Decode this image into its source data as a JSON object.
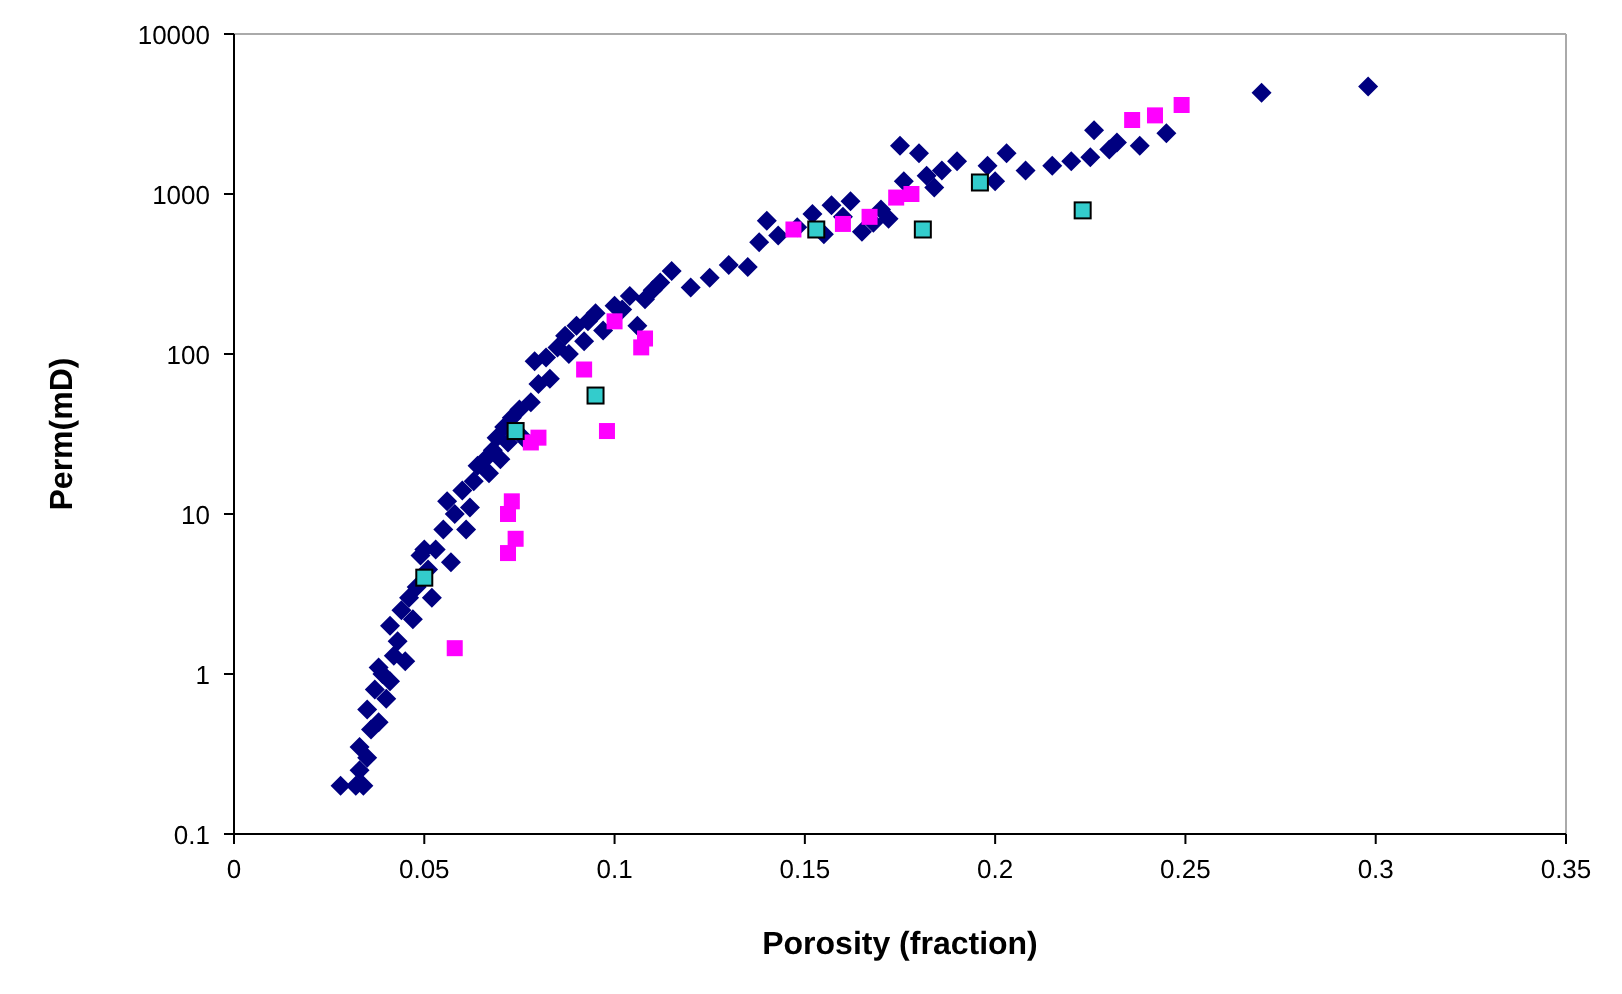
{
  "chart_data": {
    "type": "scatter",
    "xlabel": "Porosity (fraction)",
    "ylabel": "Perm(mD)",
    "log": "y",
    "grid": false,
    "xlim": [
      0,
      0.35
    ],
    "xticks": [
      0,
      0.05,
      0.1,
      0.15,
      0.2,
      0.25,
      0.3,
      0.35
    ],
    "ylim": [
      0.1,
      10000
    ],
    "yticks": [
      0.1,
      1,
      10,
      100,
      1000,
      10000
    ],
    "series": [
      {
        "color": "#000080",
        "marker": "diamond",
        "x": [
          0.028,
          0.032,
          0.033,
          0.034,
          0.033,
          0.035,
          0.036,
          0.035,
          0.037,
          0.038,
          0.039,
          0.038,
          0.04,
          0.041,
          0.042,
          0.043,
          0.041,
          0.044,
          0.045,
          0.046,
          0.047,
          0.048,
          0.049,
          0.05,
          0.051,
          0.052,
          0.053,
          0.055,
          0.056,
          0.057,
          0.058,
          0.06,
          0.061,
          0.062,
          0.063,
          0.064,
          0.066,
          0.067,
          0.068,
          0.069,
          0.07,
          0.071,
          0.072,
          0.073,
          0.075,
          0.076,
          0.078,
          0.079,
          0.08,
          0.082,
          0.083,
          0.085,
          0.087,
          0.088,
          0.09,
          0.092,
          0.093,
          0.095,
          0.097,
          0.1,
          0.102,
          0.104,
          0.106,
          0.108,
          0.11,
          0.112,
          0.115,
          0.12,
          0.125,
          0.13,
          0.135,
          0.138,
          0.14,
          0.143,
          0.148,
          0.152,
          0.155,
          0.157,
          0.16,
          0.162,
          0.165,
          0.168,
          0.17,
          0.172,
          0.175,
          0.176,
          0.18,
          0.182,
          0.184,
          0.186,
          0.19,
          0.198,
          0.2,
          0.203,
          0.208,
          0.215,
          0.22,
          0.225,
          0.226,
          0.23,
          0.232,
          0.238,
          0.245,
          0.27,
          0.298
        ],
        "values": [
          0.2,
          0.2,
          0.25,
          0.2,
          0.35,
          0.3,
          0.45,
          0.6,
          0.8,
          0.5,
          1.0,
          1.1,
          0.7,
          0.9,
          1.3,
          1.6,
          2.0,
          2.5,
          1.2,
          3.0,
          2.2,
          3.5,
          5.5,
          6,
          4.5,
          3,
          6,
          8,
          12,
          5,
          10,
          14,
          8,
          11,
          16,
          20,
          22,
          18,
          25,
          30,
          22,
          35,
          28,
          40,
          45,
          30,
          50,
          90,
          65,
          95,
          70,
          110,
          130,
          100,
          150,
          120,
          160,
          180,
          140,
          200,
          190,
          230,
          150,
          220,
          250,
          280,
          330,
          260,
          300,
          360,
          350,
          500,
          680,
          550,
          620,
          750,
          560,
          850,
          720,
          900,
          580,
          660,
          800,
          700,
          2000,
          1200,
          1800,
          1300,
          1100,
          1400,
          1600,
          1500,
          1200,
          1800,
          1400,
          1500,
          1600,
          1700,
          2500,
          1900,
          2100,
          2000,
          2400,
          4300,
          4700
        ]
      },
      {
        "color": "#ff00ff",
        "marker": "square",
        "x": [
          0.058,
          0.072,
          0.074,
          0.072,
          0.073,
          0.078,
          0.08,
          0.092,
          0.098,
          0.1,
          0.107,
          0.108,
          0.147,
          0.16,
          0.167,
          0.174,
          0.178,
          0.236,
          0.242,
          0.249
        ],
        "values": [
          1.45,
          5.7,
          7,
          10,
          12,
          28,
          30,
          80,
          33,
          160,
          110,
          125,
          600,
          650,
          720,
          950,
          1000,
          2900,
          3100,
          3600
        ]
      },
      {
        "color": "#33cccc",
        "marker": "square",
        "x": [
          0.05,
          0.074,
          0.095,
          0.153,
          0.181,
          0.196,
          0.223
        ],
        "values": [
          4,
          33,
          55,
          600,
          600,
          1180,
          790
        ]
      }
    ]
  }
}
